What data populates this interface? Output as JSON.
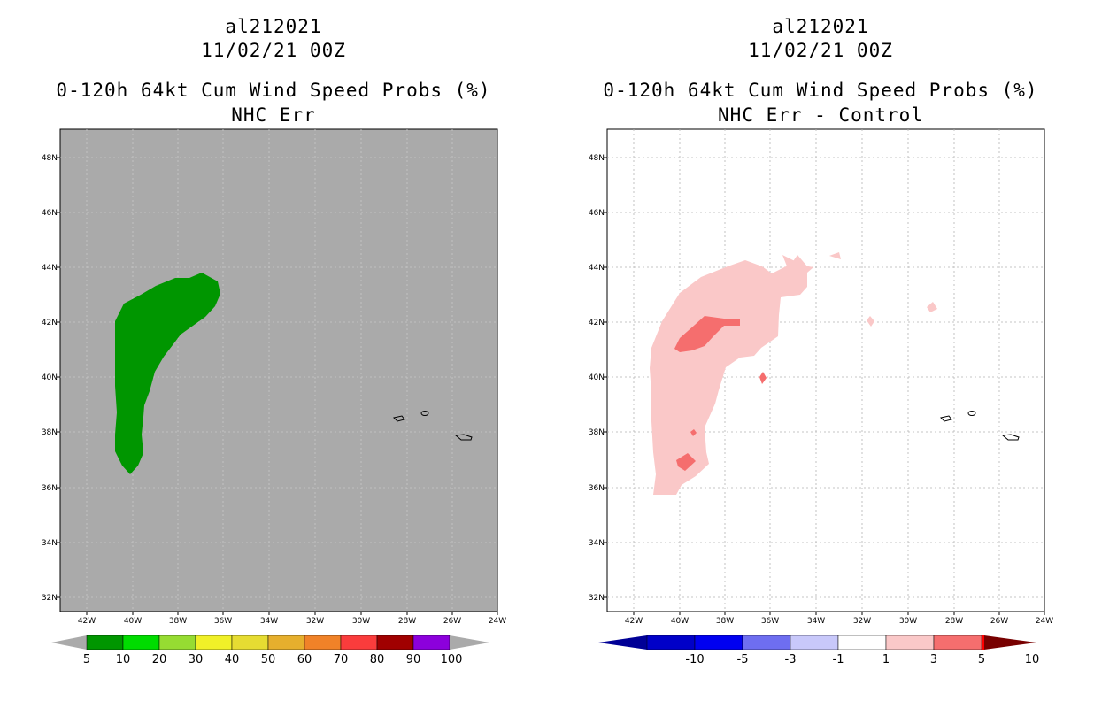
{
  "left_panel": {
    "storm_id": "al212021",
    "datetime": "11/02/21 00Z",
    "product": "0-120h 64kt Cum Wind Speed Probs (%)",
    "subtitle": "NHC Err",
    "lat_ticks": [
      "48N",
      "46N",
      "44N",
      "42N",
      "40N",
      "38N",
      "36N",
      "34N",
      "32N"
    ],
    "lon_ticks": [
      "42W",
      "40W",
      "38W",
      "36W",
      "34W",
      "32W",
      "30W",
      "28W",
      "26W",
      "24W"
    ],
    "background_color": "#aaaaaa",
    "contour_color": "#009600",
    "colorbar": {
      "labels": [
        "5",
        "10",
        "20",
        "30",
        "40",
        "50",
        "60",
        "70",
        "80",
        "90",
        "100"
      ],
      "colors": [
        "#009600",
        "#00dc00",
        "#96dc32",
        "#f0f028",
        "#e6dc32",
        "#e6af2d",
        "#f08228",
        "#fa3c3c",
        "#a00000",
        "#8c00dc"
      ],
      "extend_color": "#aaaaaa"
    }
  },
  "right_panel": {
    "storm_id": "al212021",
    "datetime": "11/02/21 00Z",
    "product": "0-120h 64kt Cum Wind Speed Probs (%)",
    "subtitle": "NHC Err - Control",
    "lat_ticks": [
      "48N",
      "46N",
      "44N",
      "42N",
      "40N",
      "38N",
      "36N",
      "34N",
      "32N"
    ],
    "lon_ticks": [
      "42W",
      "40W",
      "38W",
      "36W",
      "34W",
      "32W",
      "30W",
      "28W",
      "26W",
      "24W"
    ],
    "light_color": "#fac8c8",
    "mid_color": "#f56e6e",
    "colorbar": {
      "labels": [
        "-10",
        "-5",
        "-3",
        "-1",
        "1",
        "3",
        "5",
        "10"
      ],
      "colors": [
        "#0000c8",
        "#0000f0",
        "#6e6ef0",
        "#c8c8fa",
        "#ffffff",
        "#fac8c8",
        "#f56e6e",
        "#ff0000",
        "#a00000"
      ],
      "low_color": "#000096",
      "high_color": "#780000"
    }
  }
}
